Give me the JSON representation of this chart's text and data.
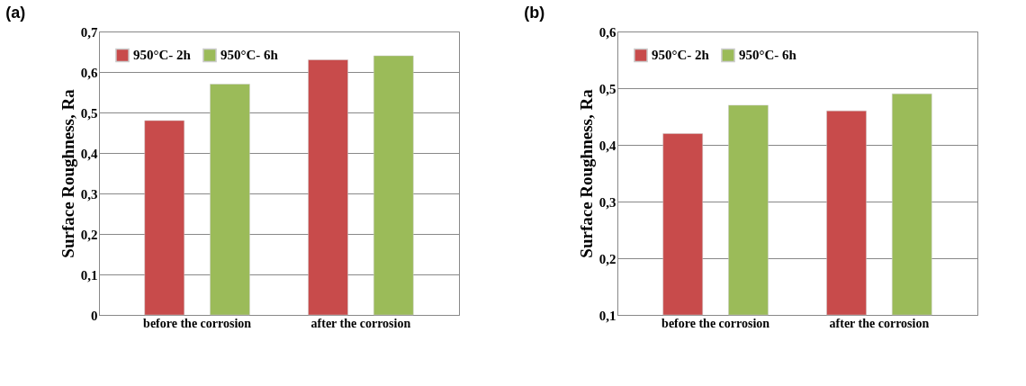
{
  "chart_data": [
    {
      "type": "bar",
      "title": "(a)",
      "ylabel": "Surface Roughness, Ra",
      "categories": [
        "before the corrosion",
        "after the corrosion"
      ],
      "series": [
        {
          "name": "950°C- 2h",
          "color": "#c84b4b",
          "values": [
            0.48,
            0.63
          ]
        },
        {
          "name": "950°C- 6h",
          "color": "#9bbb59",
          "values": [
            0.57,
            0.64
          ]
        }
      ],
      "ylim": [
        0,
        0.7
      ],
      "yticks": [
        0,
        {
          "value": 0.1,
          "label": "0,1"
        },
        {
          "value": 0.2,
          "label": "0,2"
        },
        {
          "value": 0.3,
          "label": "0,3"
        },
        {
          "value": 0.4,
          "label": "0,4"
        },
        {
          "value": 0.5,
          "label": "0,5"
        },
        {
          "value": 0.6,
          "label": "0,6"
        },
        {
          "value": 0.7,
          "label": "0,7"
        }
      ],
      "grid": "y",
      "legend": "top left"
    },
    {
      "type": "bar",
      "title": "(b)",
      "ylabel": "Surface Roughness, Ra",
      "categories": [
        "before the corrosion",
        "after the corrosion"
      ],
      "series": [
        {
          "name": "950°C- 2h",
          "color": "#c84b4b",
          "values": [
            0.42,
            0.46
          ]
        },
        {
          "name": "950°C- 6h",
          "color": "#9bbb59",
          "values": [
            0.47,
            0.49
          ]
        }
      ],
      "ylim": [
        0.1,
        0.6
      ],
      "yticks": [
        {
          "value": 0.1,
          "label": "0,1"
        },
        {
          "value": 0.2,
          "label": "0,2"
        },
        {
          "value": 0.3,
          "label": "0,3"
        },
        {
          "value": 0.4,
          "label": "0,4"
        },
        {
          "value": 0.5,
          "label": "0,5"
        },
        {
          "value": 0.6,
          "label": "0,6"
        }
      ],
      "grid": "y",
      "legend": "top left"
    }
  ]
}
